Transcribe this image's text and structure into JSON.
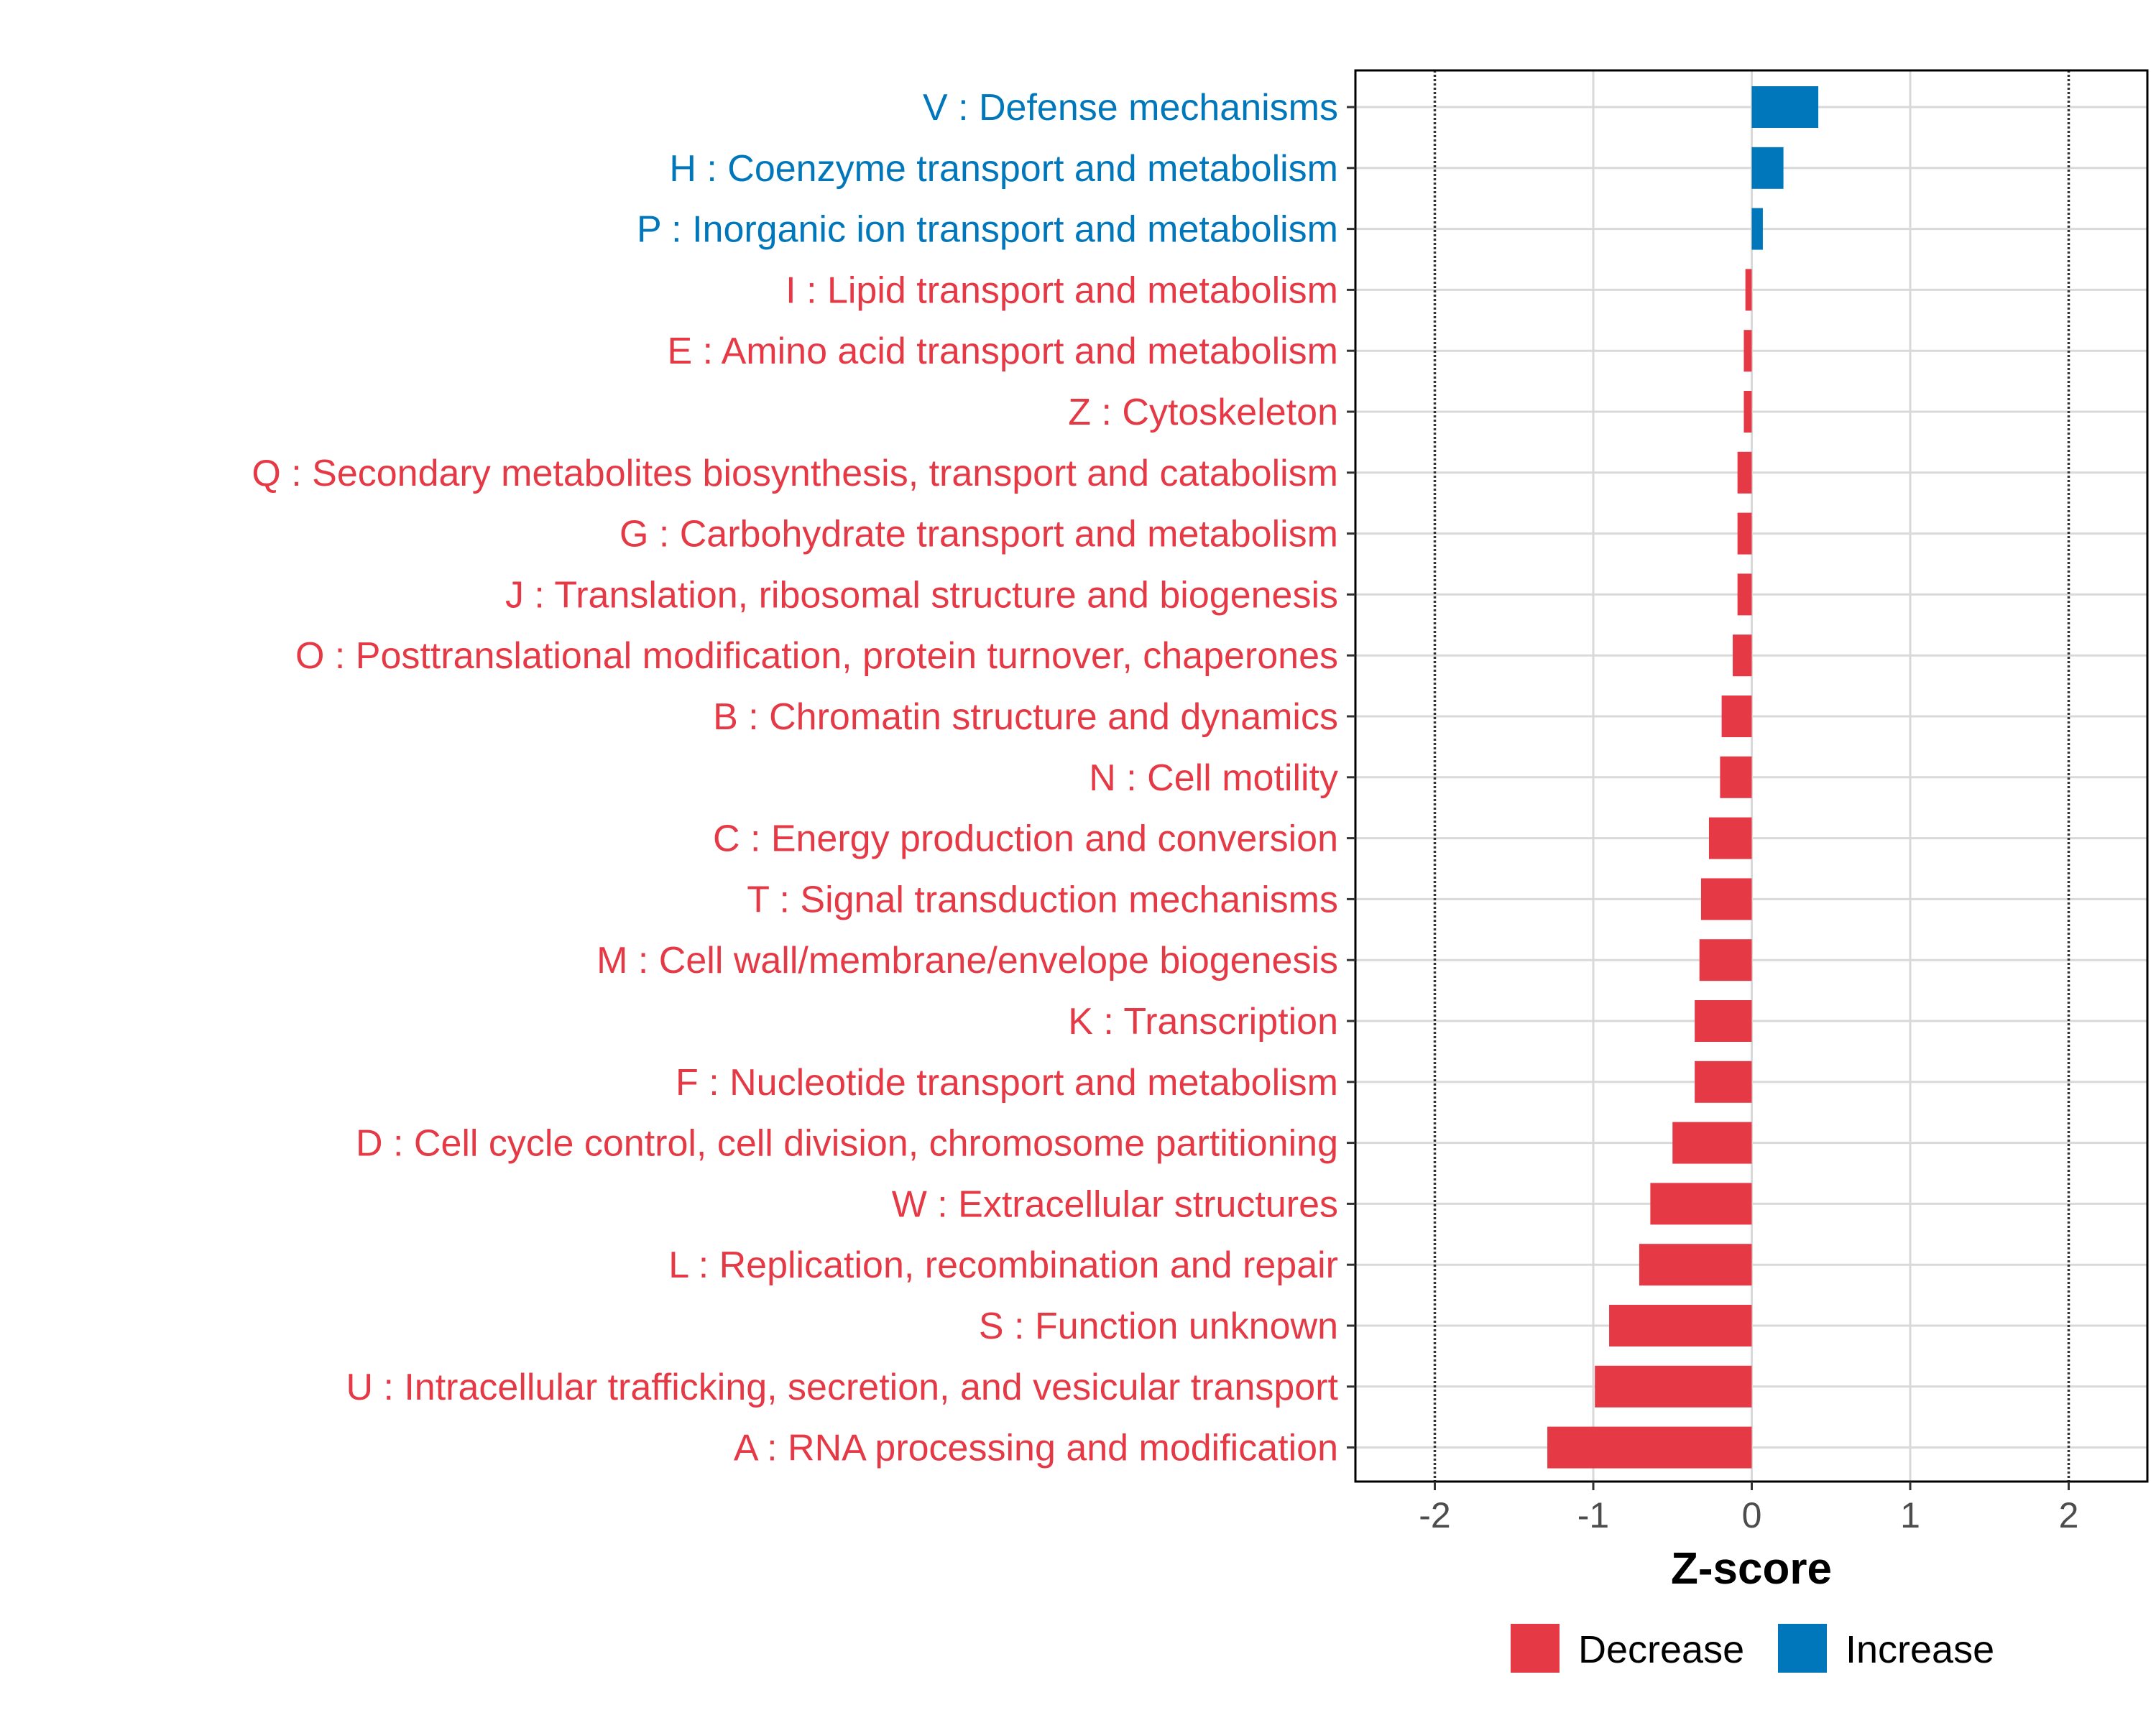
{
  "chart_data": {
    "type": "bar",
    "orientation": "horizontal",
    "title": "",
    "xlabel": "Z-score",
    "ylabel": "",
    "xlim": [
      -2.5,
      2.5
    ],
    "x_ticks": [
      -2,
      -1,
      0,
      1,
      2
    ],
    "x_tick_labels": [
      "-2",
      "-1",
      "0",
      "1",
      "2"
    ],
    "reference_lines": [
      -2,
      2
    ],
    "grid": true,
    "categories": [
      "V : Defense mechanisms",
      "H : Coenzyme transport and metabolism",
      "P : Inorganic ion transport and metabolism",
      "I : Lipid transport and metabolism",
      "E : Amino acid transport and metabolism",
      "Z : Cytoskeleton",
      "Q : Secondary metabolites biosynthesis, transport and catabolism",
      "G : Carbohydrate transport and metabolism",
      "J : Translation, ribosomal structure and biogenesis",
      "O : Posttranslational modification, protein turnover, chaperones",
      "B : Chromatin structure and dynamics",
      "N : Cell motility",
      "C : Energy production and conversion",
      "T : Signal transduction mechanisms",
      "M : Cell wall/membrane/envelope biogenesis",
      "K : Transcription",
      "F : Nucleotide transport and metabolism",
      "D : Cell cycle control, cell division, chromosome partitioning",
      "W : Extracellular structures",
      "L : Replication, recombination and repair",
      "S : Function unknown",
      "U : Intracellular trafficking, secretion, and vesicular transport",
      "A : RNA processing and modification"
    ],
    "values": [
      0.42,
      0.2,
      0.07,
      -0.04,
      -0.05,
      -0.05,
      -0.09,
      -0.09,
      -0.09,
      -0.12,
      -0.19,
      -0.2,
      -0.27,
      -0.32,
      -0.33,
      -0.36,
      -0.36,
      -0.5,
      -0.64,
      -0.71,
      -0.9,
      -0.99,
      -1.29
    ],
    "direction": [
      "Increase",
      "Increase",
      "Increase",
      "Decrease",
      "Decrease",
      "Decrease",
      "Decrease",
      "Decrease",
      "Decrease",
      "Decrease",
      "Decrease",
      "Decrease",
      "Decrease",
      "Decrease",
      "Decrease",
      "Decrease",
      "Decrease",
      "Decrease",
      "Decrease",
      "Decrease",
      "Decrease",
      "Decrease",
      "Decrease"
    ],
    "legend": {
      "position": "bottom",
      "entries": [
        {
          "label": "Decrease",
          "color": "#E63946"
        },
        {
          "label": "Increase",
          "color": "#0077BB"
        }
      ]
    }
  }
}
